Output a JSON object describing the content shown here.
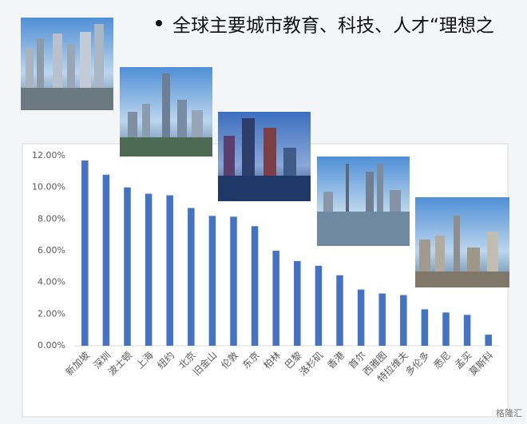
{
  "header": {
    "title": "全球主要城市教育、科技、人才“理想之"
  },
  "chart_data": {
    "type": "bar",
    "categories": [
      "新加坡",
      "深圳",
      "波士顿",
      "上海",
      "纽约",
      "北京",
      "旧金山",
      "伦敦",
      "东京",
      "柏林",
      "巴黎",
      "洛杉矶",
      "香港",
      "首尔",
      "西雅图",
      "特拉维夫",
      "多伦多",
      "悉尼",
      "孟买",
      "莫斯科"
    ],
    "values": [
      11.7,
      10.8,
      10.0,
      9.6,
      9.5,
      8.7,
      8.2,
      8.15,
      7.55,
      6.0,
      5.35,
      5.05,
      4.45,
      3.55,
      3.3,
      3.2,
      2.3,
      2.1,
      1.95,
      0.7
    ],
    "color": "#4472c4",
    "ylim": [
      0,
      12
    ],
    "yticks": [
      {
        "value": 0,
        "label": "0.00%"
      },
      {
        "value": 2,
        "label": "2.00%"
      },
      {
        "value": 4,
        "label": "4.00%"
      },
      {
        "value": 6,
        "label": "6.00%"
      },
      {
        "value": 8,
        "label": "8.00%"
      },
      {
        "value": 10,
        "label": "10.00%"
      },
      {
        "value": 12,
        "label": "12.00%"
      }
    ],
    "grid": false
  },
  "watermark": "格隆汇"
}
